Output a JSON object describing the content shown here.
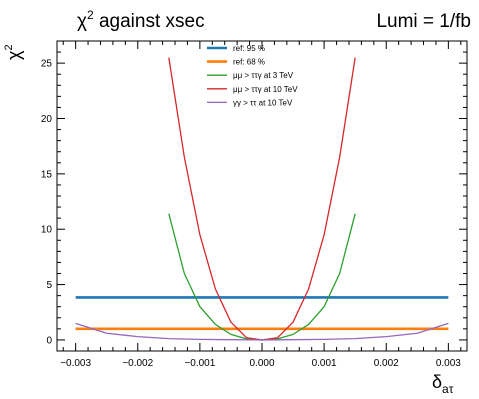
{
  "chart_data": {
    "type": "line",
    "title": "χ² against xsec",
    "title_main": "χ",
    "title_sup": "2",
    "title_rest": " against xsec",
    "lumi_label": "Lumi = 1/fb",
    "ylabel": "χ",
    "ylabel_sup": "2",
    "xlabel": "δ",
    "xlabel_sub": "aτ",
    "xlim": [
      -0.0033,
      0.0033
    ],
    "ylim": [
      -1,
      27
    ],
    "x_ticks": [
      -0.003,
      -0.002,
      -0.001,
      0.0,
      0.001,
      0.002,
      0.003
    ],
    "x_tick_labels": [
      "−0.003",
      "−0.002",
      "−0.001",
      "0.000",
      "0.001",
      "0.002",
      "0.003"
    ],
    "y_ticks": [
      0,
      5,
      10,
      15,
      20,
      25
    ],
    "y_tick_labels": [
      "0",
      "5",
      "10",
      "15",
      "20",
      "25"
    ],
    "grid": false,
    "legend_position": "top-center",
    "series": [
      {
        "name": "ref: 95 %",
        "color": "#1f77b4",
        "width": 2.6,
        "x": [
          -0.003,
          0.003
        ],
        "y": [
          3.84,
          3.84
        ]
      },
      {
        "name": "ref: 68 %",
        "color": "#ff7f0e",
        "width": 2.6,
        "x": [
          -0.003,
          0.003
        ],
        "y": [
          1.0,
          1.0
        ]
      },
      {
        "name": "μμ > ττγ at 3 TeV",
        "color": "#2ca02c",
        "width": 1.3,
        "x": [
          -0.0015,
          -0.00125,
          -0.001,
          -0.00075,
          -0.0005,
          -0.00025,
          0.0,
          0.00025,
          0.0005,
          0.00075,
          0.001,
          0.00125,
          0.0015
        ],
        "y": [
          11.4,
          6.0,
          3.0,
          1.4,
          0.5,
          0.1,
          0.0,
          0.1,
          0.5,
          1.4,
          3.0,
          6.0,
          11.4
        ]
      },
      {
        "name": "μμ > ττγ at 10 TeV",
        "color": "#d62728",
        "width": 1.3,
        "x": [
          -0.0015,
          -0.00125,
          -0.001,
          -0.00075,
          -0.0005,
          -0.00025,
          0.0,
          0.00025,
          0.0005,
          0.00075,
          0.001,
          0.00125,
          0.0015
        ],
        "y": [
          25.5,
          16.5,
          9.5,
          4.6,
          1.6,
          0.2,
          0.0,
          0.2,
          1.6,
          4.6,
          9.5,
          16.5,
          25.5
        ]
      },
      {
        "name": "γγ > ττ at 10 TeV",
        "color": "#9467bd",
        "width": 1.3,
        "x": [
          -0.003,
          -0.0025,
          -0.002,
          -0.0015,
          -0.001,
          -0.0005,
          0.0,
          0.0005,
          0.001,
          0.0015,
          0.002,
          0.0025,
          0.003
        ],
        "y": [
          1.5,
          0.6,
          0.3,
          0.12,
          0.05,
          0.02,
          0.0,
          0.02,
          0.05,
          0.12,
          0.3,
          0.6,
          1.5
        ]
      }
    ]
  }
}
